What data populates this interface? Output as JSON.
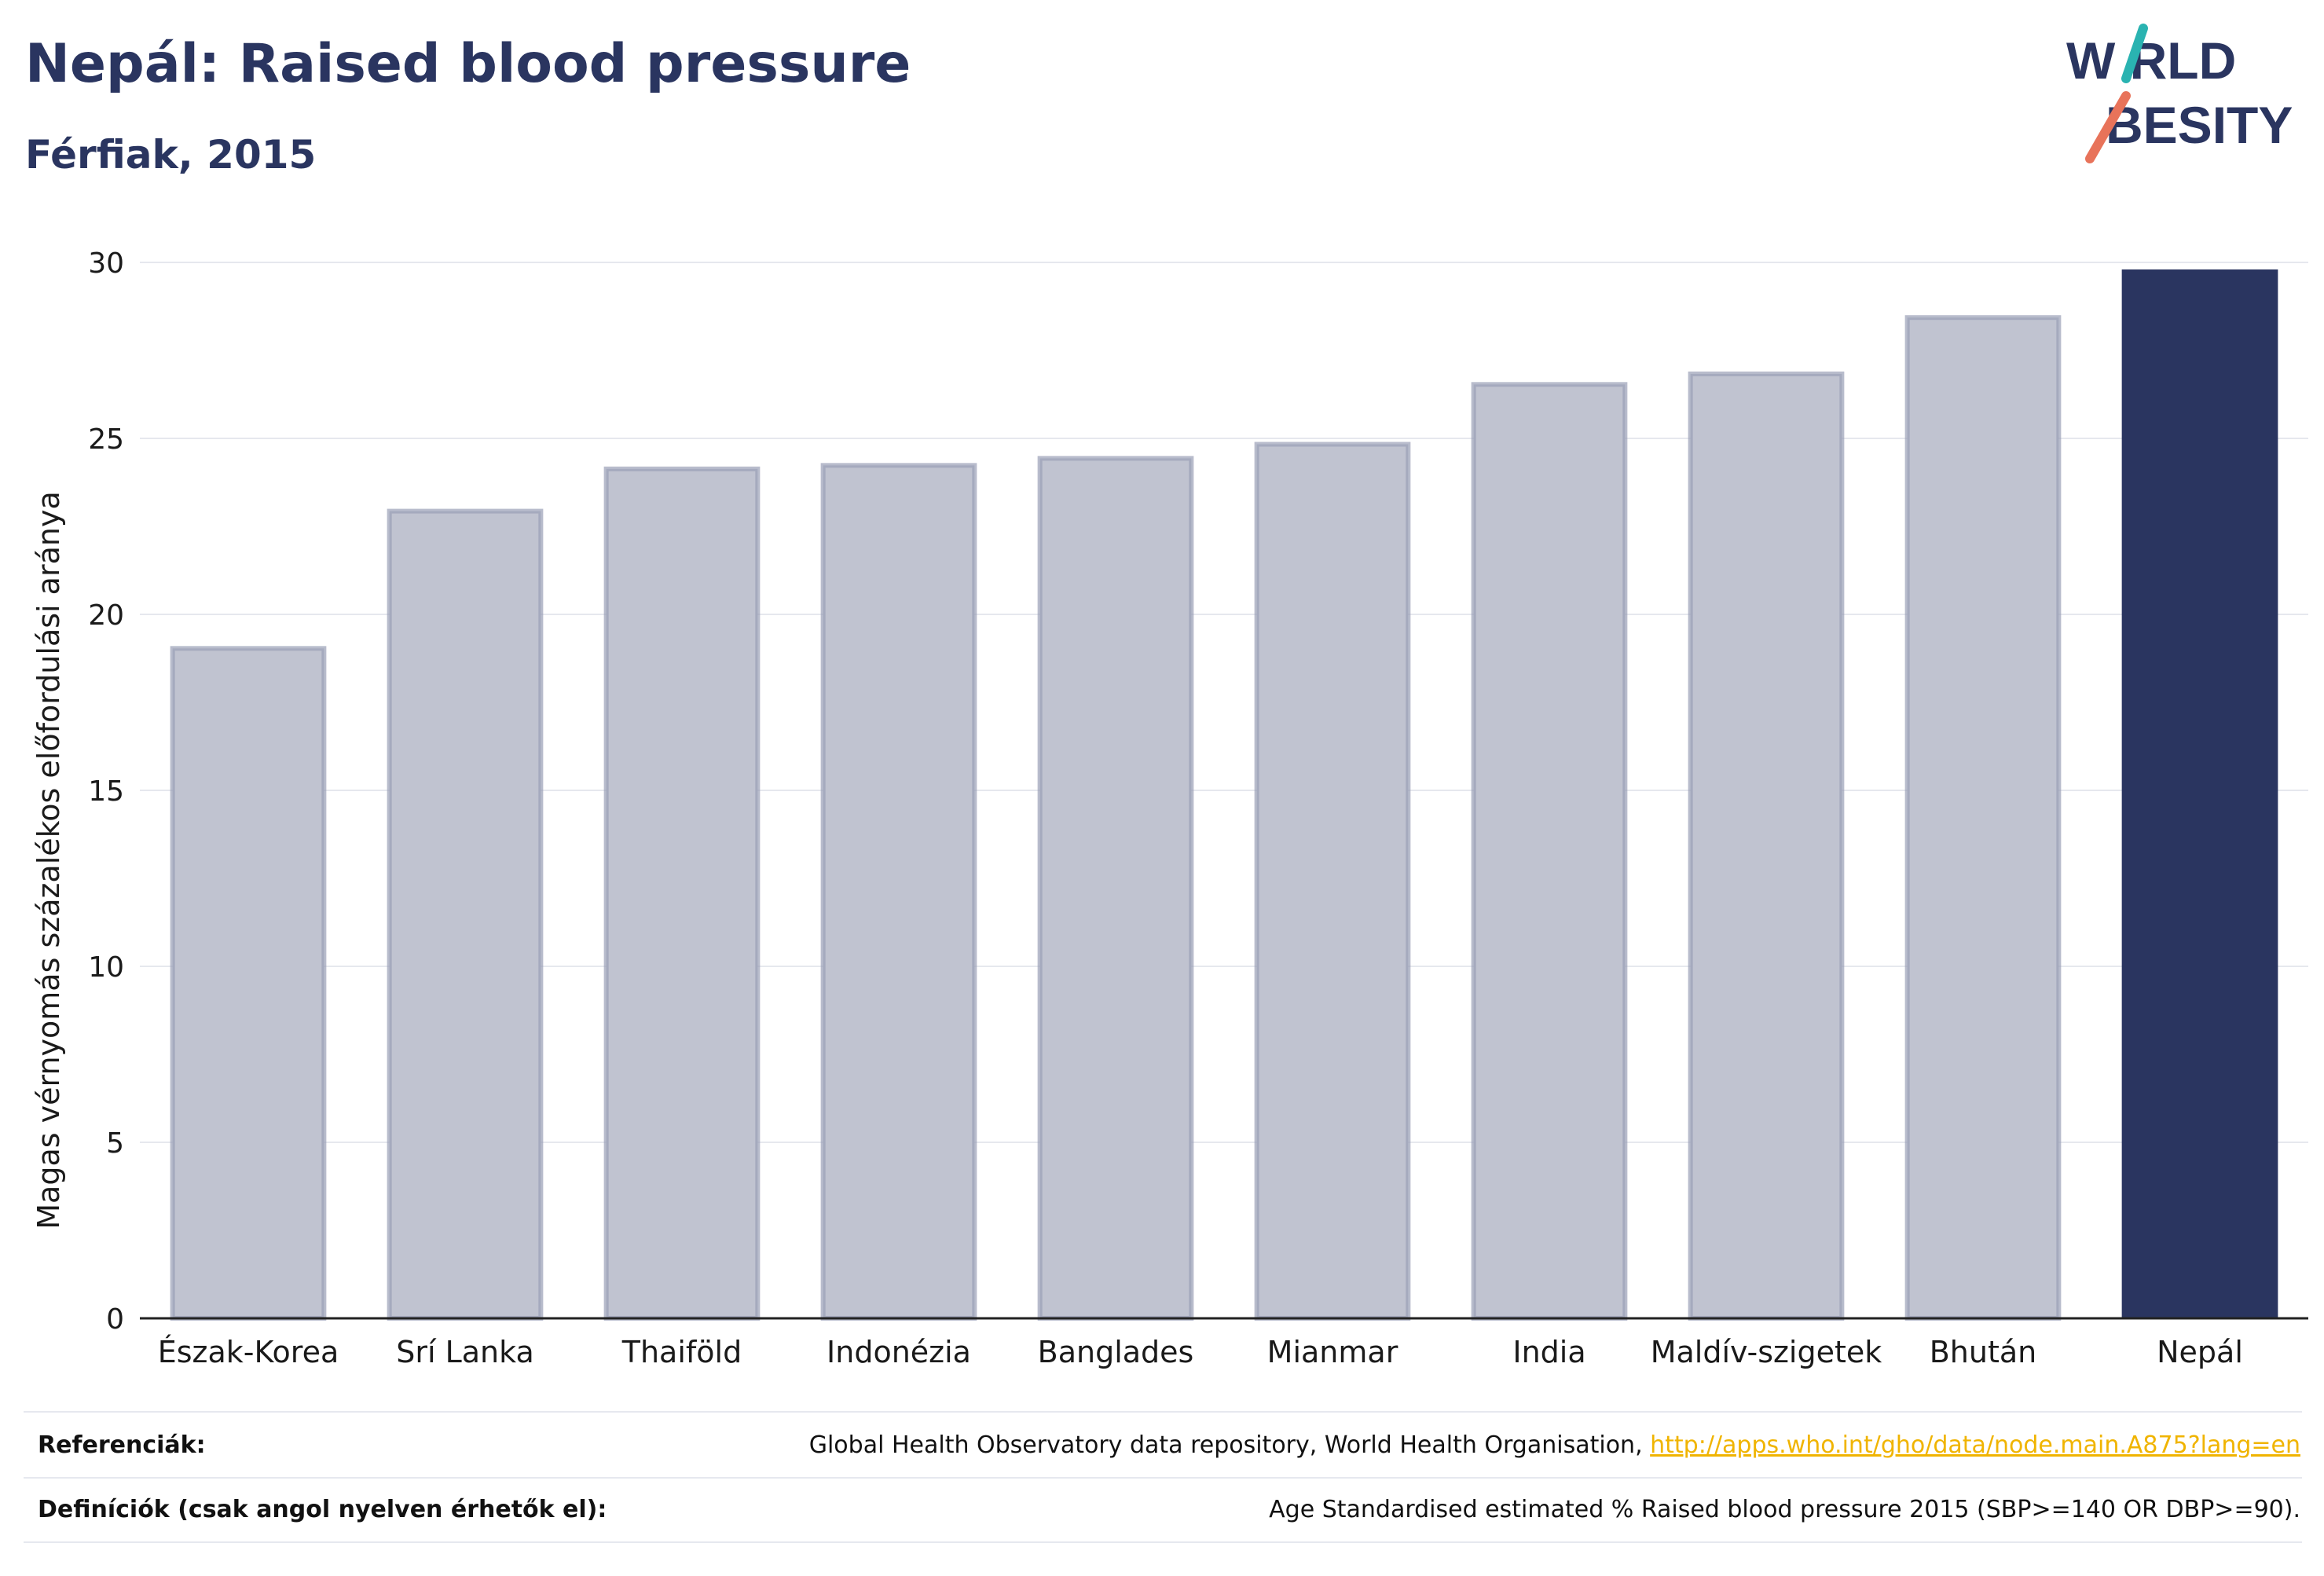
{
  "header": {
    "title": "Nepál: Raised blood pressure",
    "subtitle": "Férfiak, 2015"
  },
  "logo": {
    "line1": "W RLD",
    "line2": "BESITY",
    "text": "WORLD OBESITY",
    "accent_teal": "#2ab3b1",
    "accent_coral": "#e8735a"
  },
  "chart_data": {
    "type": "bar",
    "title": "Nepál: Raised blood pressure",
    "subtitle": "Férfiak, 2015",
    "xlabel": "",
    "ylabel": "Magas vérnyomás százalékos előfordulási aránya",
    "ylim": [
      0,
      30
    ],
    "yticks": [
      0,
      5,
      10,
      15,
      20,
      25,
      30
    ],
    "grid": true,
    "categories": [
      "Észak-Korea",
      "Srí Lanka",
      "Thaiföld",
      "Indonézia",
      "Banglades",
      "Mianmar",
      "India",
      "Maldív-szigetek",
      "Bhután",
      "Nepál"
    ],
    "values": [
      19.1,
      23.0,
      24.2,
      24.3,
      24.5,
      24.9,
      26.6,
      26.9,
      28.5,
      29.8
    ],
    "highlight": "Nepál",
    "colors": {
      "bar": "#c0c3d0",
      "bar_border": "#9a9fb6",
      "highlight": "#2a3560"
    }
  },
  "footer": {
    "references_label": "Referenciák:",
    "references_text": "Global Health Observatory data repository, World Health Organisation, ",
    "references_link": "http://apps.who.int/gho/data/node.main.A875?lang=en",
    "definitions_label": "Definíciók (csak angol nyelven érhetők el):",
    "definitions_text": "Age Standardised estimated % Raised blood pressure 2015 (SBP>=140 OR DBP>=90)."
  }
}
